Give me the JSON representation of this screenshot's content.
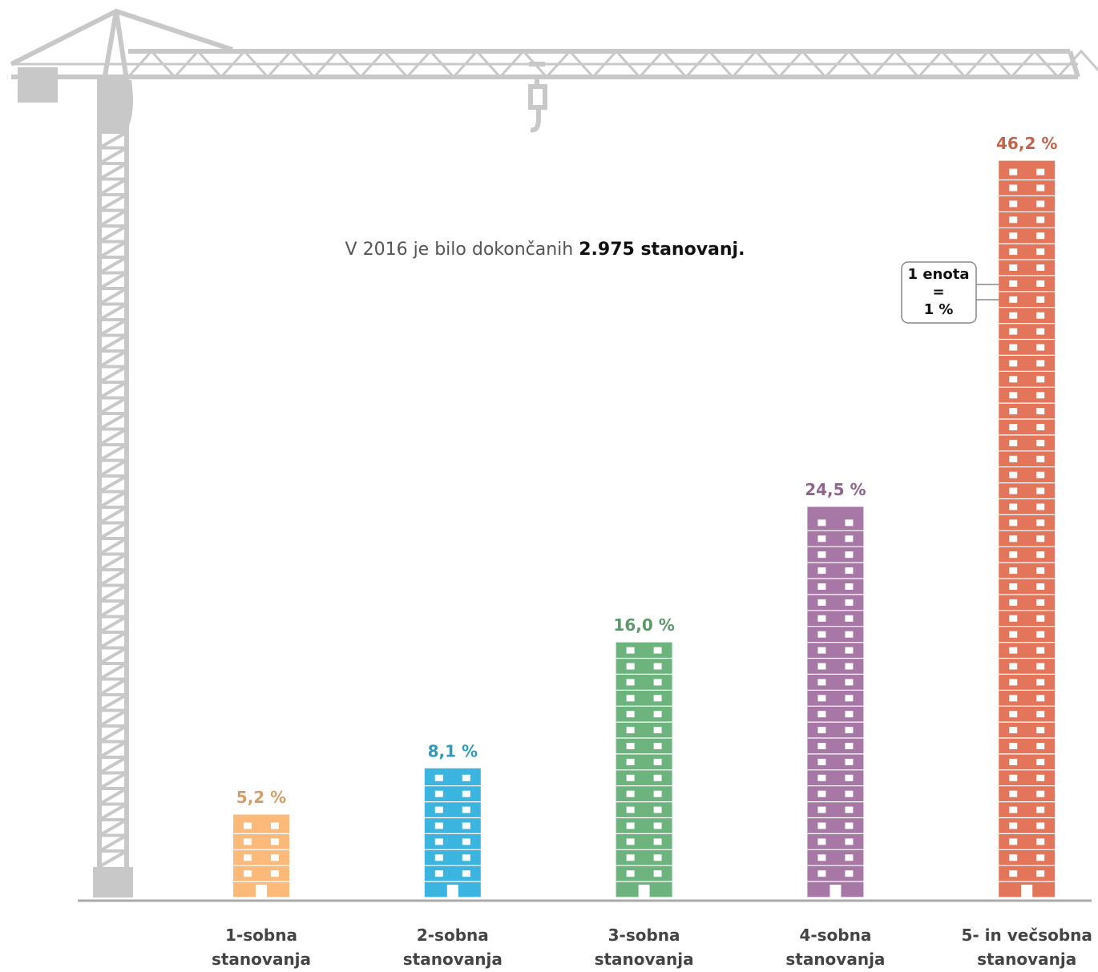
{
  "chart_data": {
    "type": "pictogram-bar",
    "title": "V 2016 je bilo dokončanih",
    "title_emphasis": "2.975 stanovanj.",
    "categories": [
      "1-sobna stanovanja",
      "2-sobna stanovanja",
      "3-sobna stanovanja",
      "4-sobna stanovanja",
      "5- in večsobna stanovanja"
    ],
    "series": [
      {
        "values": [
          5.2,
          8.1,
          16.0,
          24.5,
          46.2
        ],
        "value_labels": [
          "5,2 %",
          "8,1 %",
          "16,0 %",
          "24,5 %",
          "46,2 %"
        ],
        "colors": [
          "#fbb97a",
          "#3bb5e0",
          "#6cb37d",
          "#a777a6",
          "#e3765a"
        ]
      }
    ],
    "annotation": [
      "1 enota",
      "=",
      "1 %"
    ]
  }
}
